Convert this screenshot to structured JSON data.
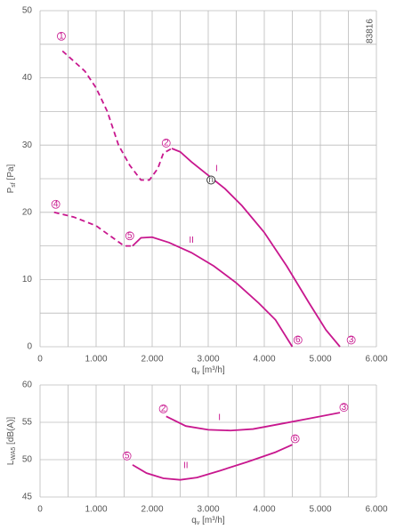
{
  "chart_data": [
    {
      "type": "line",
      "id_text": "83816",
      "ylabel": {
        "main": "P",
        "sub": "sf",
        "unit": " [Pa]"
      },
      "xlabel": {
        "main": "q",
        "sub": "v",
        "unit": " [m³/h]"
      },
      "xlim": [
        0,
        6000
      ],
      "ylim": [
        0,
        50
      ],
      "xticks": [
        0,
        {
          "value": 1000,
          "label": "1.000"
        },
        {
          "value": 2000,
          "label": "2.000"
        },
        {
          "value": 3000,
          "label": "3.000"
        },
        {
          "value": 4000,
          "label": "4.000"
        },
        {
          "value": 5000,
          "label": "5.000"
        },
        {
          "value": 6000,
          "label": "6.000"
        }
      ],
      "x_minor_grid": [
        500,
        1500,
        2500,
        3500,
        4500,
        5500
      ],
      "yticks": [
        0,
        10,
        20,
        30,
        40,
        50
      ],
      "y_minor_grid": [
        5,
        15,
        25,
        35,
        45
      ],
      "grid": true,
      "series": [
        {
          "color": "#c8178e",
          "dashed": true,
          "x": [
            400,
            600,
            800,
            1000,
            1200,
            1400,
            1600,
            1800,
            1950,
            2100,
            2200,
            2350
          ],
          "values": [
            44,
            42.5,
            41,
            38.5,
            35,
            30,
            27,
            24.8,
            24.8,
            26.5,
            28.8,
            29.5
          ]
        },
        {
          "color": "#c8178e",
          "dashed": false,
          "x": [
            2350,
            2500,
            2700,
            3000,
            3300,
            3600,
            4000,
            4400,
            4800,
            5100,
            5350
          ],
          "values": [
            29.5,
            29,
            27.5,
            25.5,
            23.5,
            21,
            17,
            12,
            6.5,
            2.5,
            0
          ]
        },
        {
          "color": "#c8178e",
          "dashed": true,
          "x": [
            250,
            600,
            1000,
            1300,
            1500,
            1650
          ],
          "values": [
            20,
            19.3,
            18,
            16.2,
            15,
            15
          ]
        },
        {
          "color": "#c8178e",
          "dashed": false,
          "x": [
            1650,
            1800,
            2000,
            2300,
            2700,
            3100,
            3500,
            3900,
            4200,
            4500
          ],
          "values": [
            15,
            16.2,
            16.3,
            15.5,
            14,
            12,
            9.5,
            6.5,
            4,
            0
          ]
        }
      ],
      "points": [
        {
          "text": "n",
          "x": 3050,
          "y": 24.8
        }
      ],
      "annotations": [
        {
          "text": "1",
          "x": 380,
          "y": 46.2,
          "circled": true
        },
        {
          "text": "2",
          "x": 2250,
          "y": 30.3,
          "circled": true
        },
        {
          "text": "3",
          "x": 5550,
          "y": 1,
          "circled": true
        },
        {
          "text": "4",
          "x": 280,
          "y": 21.2,
          "circled": true
        },
        {
          "text": "5",
          "x": 1600,
          "y": 16.5,
          "circled": true
        },
        {
          "text": "6",
          "x": 4600,
          "y": 1,
          "circled": true
        },
        {
          "text": "I",
          "x": 3150,
          "y": 26.5,
          "circled": false
        },
        {
          "text": "II",
          "x": 2700,
          "y": 15.8,
          "circled": false
        }
      ]
    },
    {
      "type": "line",
      "ylabel": {
        "main": "L",
        "sub": "WA5",
        "unit": " [dB(A)]"
      },
      "xlabel": {
        "main": "q",
        "sub": "v",
        "unit": " [m³/h]"
      },
      "xlim": [
        0,
        6000
      ],
      "ylim": [
        45,
        60
      ],
      "xticks": [
        0,
        {
          "value": 1000,
          "label": "1.000"
        },
        {
          "value": 2000,
          "label": "2.000"
        },
        {
          "value": 3000,
          "label": "3.000"
        },
        {
          "value": 4000,
          "label": "4.000"
        },
        {
          "value": 5000,
          "label": "5.000"
        },
        {
          "value": 6000,
          "label": "6.000"
        }
      ],
      "x_minor_grid": [
        500,
        1500,
        2500,
        3500,
        4500,
        5500
      ],
      "yticks": [
        45,
        50,
        55,
        60
      ],
      "y_minor_grid": [],
      "grid": true,
      "series": [
        {
          "color": "#c8178e",
          "dashed": false,
          "x": [
            2250,
            2600,
            3000,
            3400,
            3800,
            4300,
            4800,
            5350
          ],
          "values": [
            55.8,
            54.5,
            54,
            53.9,
            54.1,
            54.8,
            55.5,
            56.3
          ]
        },
        {
          "color": "#c8178e",
          "dashed": false,
          "x": [
            1650,
            1900,
            2200,
            2500,
            2800,
            3200,
            3700,
            4200,
            4500
          ],
          "values": [
            49.3,
            48.2,
            47.5,
            47.3,
            47.6,
            48.5,
            49.7,
            51,
            52
          ]
        }
      ],
      "points": [],
      "annotations": [
        {
          "text": "2",
          "x": 2200,
          "y": 56.8,
          "circled": true
        },
        {
          "text": "3",
          "x": 5420,
          "y": 57,
          "circled": true
        },
        {
          "text": "5",
          "x": 1550,
          "y": 50.5,
          "circled": true
        },
        {
          "text": "6",
          "x": 4550,
          "y": 52.8,
          "circled": true
        },
        {
          "text": "I",
          "x": 3200,
          "y": 55.6,
          "circled": false
        },
        {
          "text": "II",
          "x": 2600,
          "y": 49.2,
          "circled": false
        }
      ]
    }
  ]
}
